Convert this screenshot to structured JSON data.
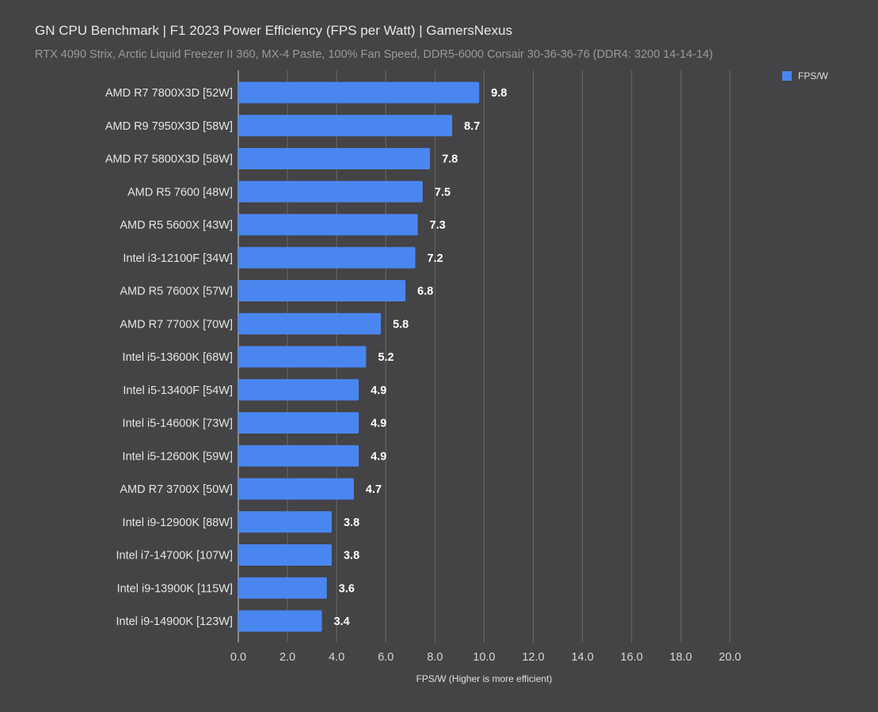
{
  "chart_data": {
    "type": "bar",
    "orientation": "horizontal",
    "title": "GN CPU Benchmark | F1 2023 Power Efficiency (FPS per Watt) | GamersNexus",
    "subtitle": "RTX 4090 Strix, Arctic Liquid Freezer II 360, MX-4 Paste, 100% Fan Speed, DDR5-6000 Corsair 30-36-36-76 (DDR4: 3200 14-14-14)",
    "xlabel": "FPS/W (Higher is more efficient)",
    "ylabel": "",
    "xlim": [
      0,
      20
    ],
    "xticks": [
      "0.0",
      "2.0",
      "4.0",
      "6.0",
      "8.0",
      "10.0",
      "12.0",
      "14.0",
      "16.0",
      "18.0",
      "20.0"
    ],
    "grid": true,
    "legend_position": "top-right",
    "categories": [
      "AMD R7 7800X3D [52W]",
      "AMD R9 7950X3D [58W]",
      "AMD R7 5800X3D [58W]",
      "AMD R5 7600 [48W]",
      "AMD R5 5600X [43W]",
      "Intel i3-12100F [34W]",
      "AMD R5 7600X [57W]",
      "AMD R7 7700X [70W]",
      "Intel i5-13600K [68W]",
      "Intel i5-13400F [54W]",
      "Intel i5-14600K [73W]",
      "Intel i5-12600K [59W]",
      "AMD R7 3700X [50W]",
      "Intel i9-12900K [88W]",
      "Intel i7-14700K [107W]",
      "Intel i9-13900K [115W]",
      "Intel i9-14900K [123W]"
    ],
    "series": [
      {
        "name": "FPS/W",
        "color": "#4a86f0",
        "values": [
          9.8,
          8.7,
          7.8,
          7.5,
          7.3,
          7.2,
          6.8,
          5.8,
          5.2,
          4.9,
          4.9,
          4.9,
          4.7,
          3.8,
          3.8,
          3.6,
          3.4
        ]
      }
    ]
  }
}
